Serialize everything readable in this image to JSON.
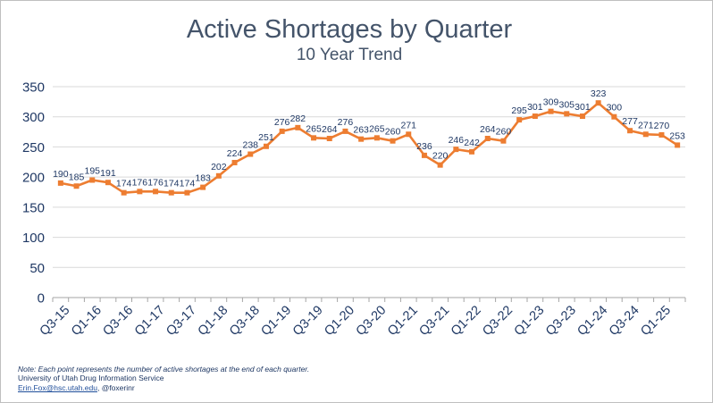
{
  "colors": {
    "line": "#ED7D31",
    "title": "#44546A",
    "axis_text": "#1F3864",
    "label": "#1F3864",
    "grid": "#D9D9D9"
  },
  "footnote": {
    "note": "Note: Each point represents the number of active shortages at the end of each quarter.",
    "org": "University of Utah Drug Information Service",
    "email": "Erin.Fox@hsc.utah.edu",
    "separator": ", ",
    "handle": "@foxerinr"
  },
  "chart_data": {
    "type": "line",
    "title": "Active Shortages by Quarter",
    "subtitle": "10 Year Trend",
    "xlabel": "",
    "ylabel": "",
    "ylim": [
      0,
      350
    ],
    "yticks": [
      0,
      50,
      100,
      150,
      200,
      250,
      300,
      350
    ],
    "grid": true,
    "legend": "none",
    "categories": [
      "Q3-15",
      "Q4-15",
      "Q1-16",
      "Q2-16",
      "Q3-16",
      "Q4-16",
      "Q1-17",
      "Q2-17",
      "Q3-17",
      "Q4-17",
      "Q1-18",
      "Q2-18",
      "Q3-18",
      "Q4-18",
      "Q1-19",
      "Q2-19",
      "Q3-19",
      "Q4-19",
      "Q1-20",
      "Q2-20",
      "Q3-20",
      "Q4-20",
      "Q1-21",
      "Q2-21",
      "Q3-21",
      "Q4-21",
      "Q1-22",
      "Q2-22",
      "Q3-22",
      "Q4-22",
      "Q1-23",
      "Q2-23",
      "Q3-23",
      "Q4-23",
      "Q1-24",
      "Q2-24",
      "Q3-24",
      "Q4-24",
      "Q1-25",
      "Q2-25"
    ],
    "tick_labels": [
      "Q3-15",
      "Q1-16",
      "Q3-16",
      "Q1-17",
      "Q3-17",
      "Q1-18",
      "Q3-18",
      "Q1-19",
      "Q3-19",
      "Q1-20",
      "Q3-20",
      "Q1-21",
      "Q3-21",
      "Q1-22",
      "Q3-22",
      "Q1-23",
      "Q3-23",
      "Q1-24",
      "Q3-24",
      "Q1-25"
    ],
    "series": [
      {
        "name": "Active Shortages",
        "values": [
          190,
          185,
          195,
          191,
          174,
          176,
          176,
          174,
          174,
          183,
          202,
          224,
          238,
          251,
          276,
          282,
          265,
          264,
          276,
          263,
          265,
          260,
          271,
          236,
          220,
          246,
          242,
          264,
          260,
          295,
          301,
          309,
          305,
          301,
          323,
          300,
          277,
          271,
          270,
          253
        ]
      }
    ]
  }
}
